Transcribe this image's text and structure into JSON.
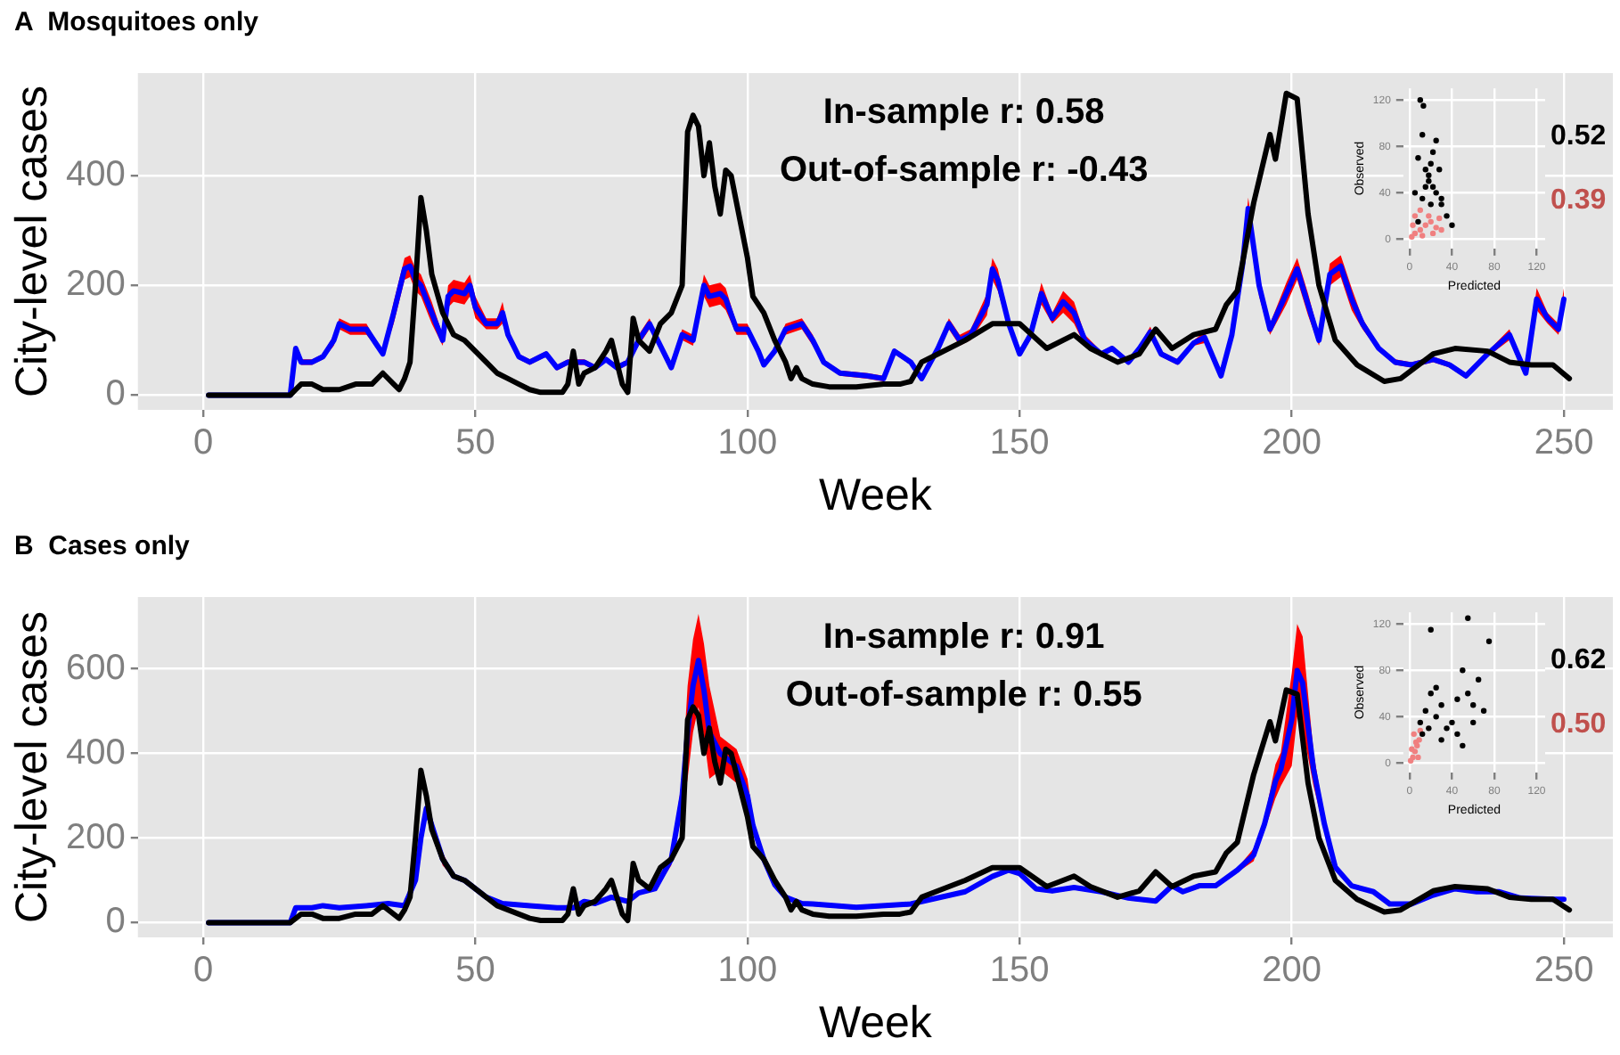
{
  "chart_data": [
    {
      "type": "line",
      "title": "A  Mosquitoes only",
      "xlabel": "Week",
      "ylabel": "City-level cases",
      "xlim": [
        -12,
        259
      ],
      "xticks": [
        0,
        50,
        100,
        150,
        200,
        250
      ],
      "ylim": [
        -27,
        587
      ],
      "yticks": [
        0,
        200,
        400
      ],
      "grid": true,
      "marker": "none",
      "annotations": [
        "In-sample r: 0.58",
        "Out-of-sample r: -0.43"
      ],
      "series": [
        {
          "color": "#000000",
          "x": [
            1,
            16,
            17,
            18,
            20,
            22,
            25,
            28,
            31,
            33,
            35,
            36,
            37,
            38,
            39,
            40,
            41,
            42,
            44,
            46,
            48,
            50,
            52,
            54,
            56,
            58,
            60,
            62,
            64,
            66,
            67,
            68,
            69,
            70,
            72,
            74,
            75,
            76,
            77,
            78,
            79,
            80,
            82,
            84,
            86,
            88,
            89,
            90,
            91,
            92,
            93,
            94,
            95,
            96,
            97,
            98,
            99,
            100,
            101,
            103,
            105,
            107,
            108,
            109,
            110,
            112,
            115,
            120,
            125,
            128,
            130,
            132,
            135,
            140,
            145,
            150,
            155,
            160,
            163,
            168,
            172,
            175,
            178,
            182,
            186,
            188,
            190,
            193,
            196,
            197,
            199,
            201,
            203,
            205,
            208,
            212,
            217,
            220,
            226,
            230,
            236,
            240,
            244,
            248,
            251
          ],
          "values": [
            0,
            0,
            10,
            20,
            20,
            10,
            10,
            20,
            20,
            40,
            20,
            10,
            30,
            60,
            200,
            360,
            300,
            220,
            150,
            110,
            100,
            80,
            60,
            40,
            30,
            20,
            10,
            5,
            5,
            5,
            20,
            80,
            20,
            40,
            50,
            80,
            100,
            60,
            20,
            5,
            140,
            100,
            80,
            130,
            150,
            200,
            480,
            510,
            490,
            400,
            460,
            380,
            330,
            410,
            400,
            350,
            300,
            250,
            180,
            150,
            100,
            60,
            30,
            50,
            30,
            20,
            15,
            15,
            20,
            20,
            25,
            60,
            75,
            100,
            130,
            130,
            85,
            110,
            85,
            60,
            75,
            120,
            85,
            110,
            120,
            165,
            190,
            350,
            475,
            430,
            550,
            540,
            330,
            200,
            100,
            55,
            25,
            30,
            75,
            85,
            80,
            60,
            55,
            55,
            30
          ]
        },
        {
          "color": "#0000ff",
          "x": [
            1,
            16,
            17,
            18,
            20,
            22,
            24,
            25,
            27,
            30,
            32,
            33,
            35,
            37,
            38,
            39,
            40,
            42,
            44,
            45,
            46,
            48,
            49,
            50,
            52,
            54,
            55,
            56,
            58,
            60,
            62,
            63,
            65,
            67,
            70,
            72,
            74,
            76,
            78,
            80,
            82,
            84,
            86,
            88,
            90,
            92,
            93,
            95,
            96,
            98,
            100,
            102,
            103,
            105,
            107,
            110,
            112,
            114,
            117,
            122,
            125,
            127,
            130,
            132,
            135,
            137,
            139,
            141,
            144,
            145,
            146,
            148,
            150,
            152,
            154,
            156,
            158,
            160,
            162,
            165,
            167,
            170,
            172,
            174,
            176,
            179,
            182,
            184,
            187,
            189,
            191,
            192,
            194,
            196,
            199,
            201,
            203,
            205,
            207,
            209,
            211,
            213,
            216,
            219,
            222,
            226,
            229,
            232,
            236,
            240,
            243,
            245,
            247,
            249,
            250
          ],
          "values": [
            0,
            0,
            85,
            60,
            60,
            70,
            100,
            130,
            120,
            120,
            90,
            75,
            150,
            230,
            235,
            210,
            200,
            150,
            100,
            180,
            190,
            185,
            200,
            160,
            130,
            130,
            150,
            110,
            70,
            60,
            70,
            75,
            50,
            60,
            60,
            50,
            65,
            50,
            60,
            100,
            130,
            90,
            50,
            110,
            100,
            200,
            180,
            185,
            175,
            120,
            120,
            80,
            55,
            80,
            120,
            130,
            100,
            60,
            40,
            35,
            30,
            80,
            60,
            30,
            85,
            130,
            100,
            110,
            165,
            230,
            210,
            130,
            75,
            110,
            185,
            140,
            170,
            150,
            100,
            75,
            85,
            60,
            85,
            115,
            75,
            60,
            95,
            105,
            35,
            110,
            240,
            340,
            200,
            120,
            185,
            230,
            165,
            100,
            220,
            235,
            175,
            130,
            85,
            60,
            55,
            65,
            55,
            35,
            75,
            110,
            40,
            175,
            140,
            120,
            175
          ],
          "lower": [
            0,
            0,
            80,
            55,
            55,
            65,
            90,
            120,
            110,
            110,
            85,
            70,
            130,
            210,
            215,
            190,
            180,
            130,
            90,
            160,
            170,
            165,
            180,
            140,
            120,
            120,
            130,
            100,
            65,
            55,
            65,
            70,
            45,
            55,
            55,
            45,
            60,
            45,
            55,
            90,
            120,
            85,
            45,
            100,
            90,
            180,
            160,
            165,
            155,
            110,
            110,
            75,
            50,
            75,
            110,
            120,
            90,
            55,
            35,
            30,
            25,
            75,
            55,
            25,
            80,
            120,
            90,
            100,
            145,
            210,
            190,
            120,
            70,
            100,
            165,
            130,
            150,
            130,
            90,
            70,
            80,
            55,
            80,
            105,
            70,
            55,
            90,
            95,
            30,
            100,
            220,
            320,
            180,
            110,
            165,
            210,
            145,
            90,
            200,
            215,
            155,
            120,
            80,
            55,
            50,
            60,
            50,
            30,
            70,
            100,
            35,
            155,
            130,
            110,
            155
          ],
          "upper": [
            0,
            0,
            90,
            65,
            65,
            75,
            110,
            140,
            130,
            130,
            95,
            80,
            170,
            250,
            255,
            230,
            220,
            170,
            110,
            200,
            210,
            205,
            220,
            180,
            140,
            140,
            170,
            120,
            75,
            65,
            75,
            80,
            55,
            65,
            65,
            55,
            70,
            55,
            65,
            110,
            140,
            95,
            55,
            120,
            110,
            220,
            200,
            205,
            195,
            130,
            130,
            85,
            60,
            85,
            130,
            140,
            110,
            65,
            45,
            40,
            35,
            85,
            65,
            35,
            90,
            140,
            110,
            120,
            185,
            250,
            230,
            140,
            80,
            120,
            205,
            150,
            190,
            170,
            110,
            80,
            90,
            65,
            90,
            125,
            80,
            65,
            100,
            115,
            40,
            120,
            260,
            360,
            220,
            130,
            205,
            250,
            185,
            110,
            240,
            255,
            195,
            140,
            90,
            65,
            60,
            70,
            60,
            40,
            80,
            120,
            45,
            195,
            150,
            130,
            195
          ]
        }
      ]
    },
    {
      "type": "scatter",
      "xlabel": "Predicted",
      "ylabel": "Observed",
      "xlim": [
        -6,
        128
      ],
      "xticks": [
        0,
        40,
        80,
        120
      ],
      "ylim": [
        -8,
        130
      ],
      "yticks": [
        0,
        40,
        80,
        120
      ],
      "grid": true,
      "marker": "circle",
      "annotations": [
        "0.52",
        "0.39"
      ],
      "series": [
        {
          "color": "#000000",
          "x": [
            8,
            12,
            15,
            18,
            20,
            22,
            25,
            10,
            13,
            20,
            25,
            30,
            35,
            28,
            5,
            8,
            12,
            15,
            18,
            22,
            30,
            40
          ],
          "values": [
            15,
            35,
            45,
            55,
            65,
            75,
            85,
            120,
            115,
            30,
            40,
            30,
            20,
            60,
            40,
            70,
            90,
            60,
            50,
            45,
            35,
            12
          ]
        },
        {
          "color": "#f08080",
          "x": [
            2,
            5,
            10,
            15,
            20,
            25,
            30,
            5,
            10,
            18,
            28,
            3,
            12,
            22
          ],
          "values": [
            2,
            5,
            8,
            12,
            15,
            10,
            8,
            20,
            25,
            20,
            18,
            12,
            3,
            5
          ]
        }
      ]
    },
    {
      "type": "line",
      "title": "B  Cases only",
      "xlabel": "Week",
      "ylabel": "City-level cases",
      "xlim": [
        -12,
        259
      ],
      "xticks": [
        0,
        50,
        100,
        150,
        200,
        250
      ],
      "ylim": [
        -35,
        770
      ],
      "yticks": [
        0,
        200,
        400,
        600
      ],
      "grid": true,
      "marker": "none",
      "annotations": [
        "In-sample r: 0.91",
        "Out-of-sample r: 0.55"
      ],
      "series": [
        {
          "color": "#000000",
          "x": [
            1,
            16,
            17,
            18,
            20,
            22,
            25,
            28,
            31,
            33,
            35,
            36,
            37,
            38,
            39,
            40,
            41,
            42,
            44,
            46,
            48,
            50,
            52,
            54,
            56,
            58,
            60,
            62,
            64,
            66,
            67,
            68,
            69,
            70,
            72,
            74,
            75,
            76,
            77,
            78,
            79,
            80,
            82,
            84,
            86,
            88,
            89,
            90,
            91,
            92,
            93,
            94,
            95,
            96,
            97,
            98,
            99,
            100,
            101,
            103,
            105,
            107,
            108,
            109,
            110,
            112,
            115,
            120,
            125,
            128,
            130,
            132,
            135,
            140,
            145,
            150,
            155,
            160,
            163,
            168,
            172,
            175,
            178,
            182,
            186,
            188,
            190,
            193,
            196,
            197,
            199,
            201,
            203,
            205,
            208,
            212,
            217,
            220,
            226,
            230,
            236,
            240,
            244,
            248,
            251
          ],
          "values": [
            0,
            0,
            10,
            20,
            20,
            10,
            10,
            20,
            20,
            40,
            20,
            10,
            30,
            60,
            200,
            360,
            300,
            220,
            150,
            110,
            100,
            80,
            60,
            40,
            30,
            20,
            10,
            5,
            5,
            5,
            20,
            80,
            20,
            40,
            50,
            80,
            100,
            60,
            20,
            5,
            140,
            100,
            80,
            130,
            150,
            200,
            480,
            510,
            490,
            400,
            460,
            380,
            330,
            410,
            400,
            350,
            300,
            250,
            180,
            150,
            100,
            60,
            30,
            50,
            30,
            20,
            15,
            15,
            20,
            20,
            25,
            60,
            75,
            100,
            130,
            130,
            85,
            110,
            85,
            60,
            75,
            120,
            85,
            110,
            120,
            165,
            190,
            350,
            475,
            430,
            550,
            540,
            330,
            200,
            100,
            55,
            25,
            30,
            75,
            85,
            80,
            60,
            55,
            55,
            30
          ]
        },
        {
          "color": "#0000ff",
          "x": [
            1,
            16,
            17,
            20,
            22,
            25,
            30,
            34,
            37,
            39,
            40,
            41,
            42,
            44,
            46,
            48,
            50,
            52,
            55,
            60,
            65,
            68,
            70,
            72,
            75,
            78,
            80,
            83,
            86,
            88,
            89,
            90,
            91,
            92,
            93,
            95,
            97,
            98,
            100,
            101,
            103,
            105,
            107,
            110,
            112,
            120,
            130,
            140,
            145,
            148,
            150,
            153,
            156,
            160,
            165,
            170,
            175,
            178,
            180,
            183,
            186,
            190,
            193,
            195,
            197,
            198,
            200,
            201,
            202,
            204,
            206,
            208,
            211,
            215,
            218,
            222,
            226,
            230,
            234,
            238,
            242,
            248,
            250
          ],
          "values": [
            0,
            0,
            35,
            35,
            40,
            35,
            40,
            45,
            40,
            100,
            200,
            270,
            230,
            150,
            110,
            100,
            80,
            60,
            45,
            40,
            35,
            35,
            50,
            45,
            60,
            50,
            70,
            80,
            150,
            300,
            450,
            560,
            620,
            550,
            450,
            400,
            380,
            370,
            300,
            230,
            150,
            90,
            60,
            45,
            44,
            36,
            44,
            73,
            109,
            124,
            116,
            80,
            75,
            83,
            73,
            58,
            51,
            87,
            73,
            87,
            87,
            124,
            160,
            233,
            334,
            363,
            480,
            596,
            567,
            363,
            233,
            131,
            87,
            73,
            44,
            44,
            65,
            80,
            73,
            73,
            58,
            55,
            55
          ],
          "lower": [
            0,
            0,
            30,
            30,
            35,
            30,
            35,
            40,
            35,
            95,
            185,
            255,
            215,
            135,
            105,
            95,
            75,
            55,
            40,
            35,
            30,
            30,
            45,
            40,
            55,
            45,
            65,
            75,
            135,
            260,
            340,
            450,
            510,
            440,
            340,
            360,
            340,
            330,
            260,
            215,
            135,
            85,
            55,
            40,
            39,
            31,
            39,
            68,
            104,
            119,
            111,
            75,
            70,
            78,
            68,
            53,
            46,
            82,
            68,
            82,
            82,
            119,
            145,
            218,
            294,
            323,
            370,
            486,
            457,
            323,
            218,
            126,
            82,
            68,
            39,
            39,
            60,
            75,
            68,
            68,
            53,
            50,
            50
          ],
          "upper": [
            0,
            0,
            40,
            40,
            45,
            40,
            45,
            50,
            45,
            105,
            215,
            285,
            245,
            165,
            115,
            105,
            85,
            65,
            50,
            45,
            40,
            40,
            55,
            50,
            65,
            55,
            75,
            85,
            165,
            340,
            560,
            670,
            730,
            660,
            560,
            440,
            420,
            410,
            340,
            245,
            165,
            95,
            65,
            50,
            49,
            41,
            49,
            78,
            114,
            129,
            121,
            85,
            80,
            88,
            78,
            63,
            56,
            92,
            78,
            92,
            92,
            129,
            175,
            248,
            374,
            403,
            590,
            706,
            677,
            403,
            248,
            136,
            92,
            78,
            49,
            49,
            70,
            85,
            78,
            78,
            63,
            60,
            60
          ]
        }
      ]
    },
    {
      "type": "scatter",
      "xlabel": "Predicted",
      "ylabel": "Observed",
      "xlim": [
        -6,
        128
      ],
      "xticks": [
        0,
        40,
        80,
        120
      ],
      "ylim": [
        -8,
        130
      ],
      "yticks": [
        0,
        40,
        80,
        120
      ],
      "grid": true,
      "marker": "circle",
      "annotations": [
        "0.62",
        "0.50"
      ],
      "series": [
        {
          "color": "#000000",
          "x": [
            20,
            55,
            75,
            50,
            65,
            55,
            60,
            70,
            45,
            30,
            20,
            15,
            10,
            25,
            35,
            40,
            45,
            30,
            60,
            50,
            25,
            18,
            12
          ],
          "values": [
            115,
            125,
            105,
            80,
            72,
            60,
            50,
            45,
            55,
            50,
            60,
            45,
            35,
            40,
            30,
            35,
            25,
            20,
            35,
            15,
            65,
            30,
            25
          ]
        },
        {
          "color": "#f08080",
          "x": [
            1,
            3,
            5,
            7,
            9,
            10,
            4,
            2,
            8,
            6
          ],
          "values": [
            2,
            5,
            10,
            15,
            20,
            28,
            25,
            12,
            5,
            18
          ]
        }
      ]
    }
  ]
}
